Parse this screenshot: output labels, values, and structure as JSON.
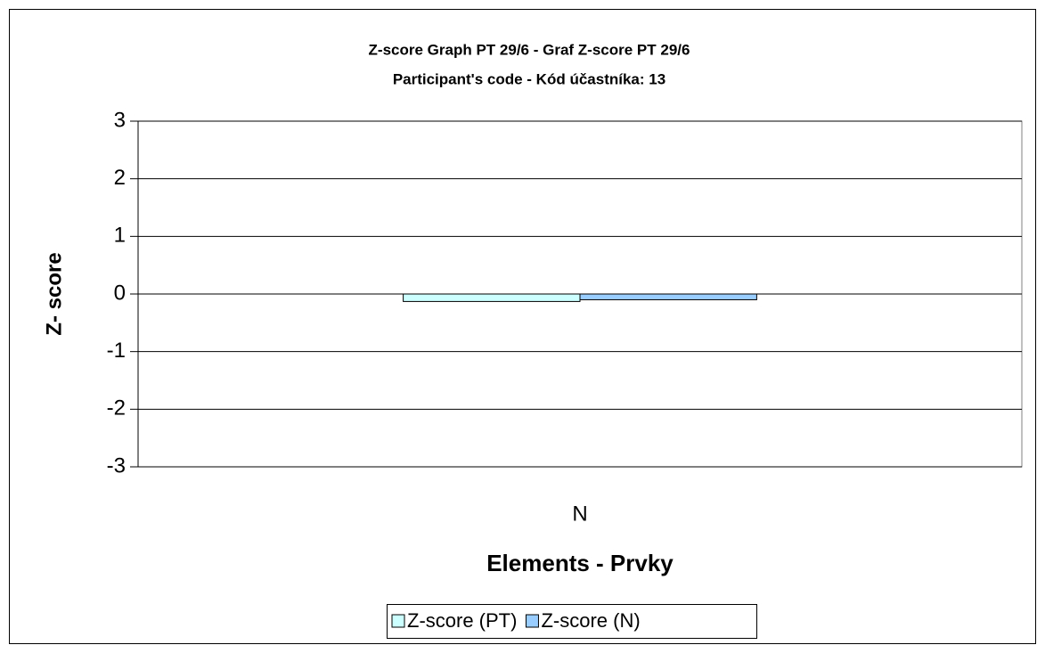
{
  "chart_data": {
    "type": "bar",
    "title": "Z-score Graph PT 29/6 - Graf Z-score PT 29/6",
    "subtitle": "Participant's code - Kód účastníka:  13",
    "x_label": "Elements - Prvky",
    "y_label": "Z- score",
    "categories": [
      "N"
    ],
    "series": [
      {
        "name": "Z-score (PT)",
        "color": "#ccffff",
        "values": [
          -0.13
        ]
      },
      {
        "name": "Z-score (N)",
        "color": "#99ccff",
        "values": [
          -0.1
        ]
      }
    ],
    "ylim": [
      -3,
      3
    ],
    "yticks": [
      -3,
      -2,
      -1,
      0,
      1,
      2,
      3
    ],
    "grid": true,
    "legend": "bottom"
  }
}
